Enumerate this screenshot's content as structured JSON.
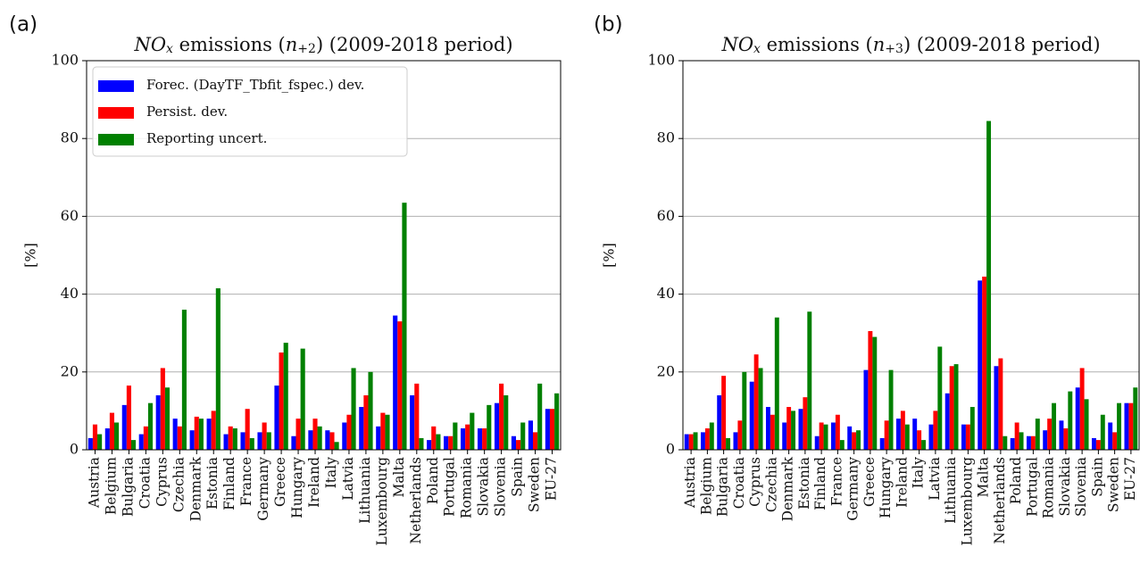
{
  "chart_data": [
    {
      "type": "bar",
      "panel_label": "(a)",
      "title_parts": [
        "NO",
        "x",
        " emissions (",
        "n",
        "+2",
        ") (2009-2018 period)"
      ],
      "ylabel": "[%]",
      "ylim": [
        0,
        100
      ],
      "yticks": [
        0,
        20,
        40,
        60,
        80,
        100
      ],
      "grid": true,
      "legend": "upper left",
      "categories": [
        "Austria",
        "Belgium",
        "Bulgaria",
        "Croatia",
        "Cyprus",
        "Czechia",
        "Denmark",
        "Estonia",
        "Finland",
        "France",
        "Germany",
        "Greece",
        "Hungary",
        "Ireland",
        "Italy",
        "Latvia",
        "Lithuania",
        "Luxembourg",
        "Malta",
        "Netherlands",
        "Poland",
        "Portugal",
        "Romania",
        "Slovakia",
        "Slovenia",
        "Spain",
        "Sweden",
        "EU-27"
      ],
      "series": [
        {
          "name": "Forec. (DayTF_Tbfit_fspec.) dev.",
          "color": "#0000ff",
          "values": [
            3,
            5.5,
            11.5,
            4,
            14,
            8,
            5,
            8,
            4,
            4.5,
            4.5,
            16.5,
            3.5,
            5,
            5,
            7,
            11,
            6,
            34.5,
            14,
            2.5,
            3.5,
            5.5,
            5.5,
            12,
            3.5,
            7.5,
            10.5
          ]
        },
        {
          "name": "Persist. dev.",
          "color": "#ff0000",
          "values": [
            6.5,
            9.5,
            16.5,
            6,
            21,
            6,
            8.5,
            10,
            6,
            10.5,
            7,
            25,
            8,
            8,
            4.5,
            9,
            14,
            9.5,
            33,
            17,
            6,
            3.5,
            6.5,
            5.5,
            17,
            2.5,
            4.5,
            10.5
          ]
        },
        {
          "name": "Reporting uncert.",
          "color": "#008000",
          "values": [
            4,
            7,
            2.5,
            12,
            16,
            36,
            8,
            41.5,
            5.5,
            3,
            4.5,
            27.5,
            26,
            6,
            2,
            21,
            20,
            9,
            63.5,
            3,
            4,
            7,
            9.5,
            11.5,
            14,
            7,
            17,
            14.5
          ]
        }
      ]
    },
    {
      "type": "bar",
      "panel_label": "(b)",
      "title_parts": [
        "NO",
        "x",
        " emissions (",
        "n",
        "+3",
        ") (2009-2018 period)"
      ],
      "ylabel": "[%]",
      "ylim": [
        0,
        100
      ],
      "yticks": [
        0,
        20,
        40,
        60,
        80,
        100
      ],
      "grid": true,
      "categories": [
        "Austria",
        "Belgium",
        "Bulgaria",
        "Croatia",
        "Cyprus",
        "Czechia",
        "Denmark",
        "Estonia",
        "Finland",
        "France",
        "Germany",
        "Greece",
        "Hungary",
        "Ireland",
        "Italy",
        "Latvia",
        "Lithuania",
        "Luxembourg",
        "Malta",
        "Netherlands",
        "Poland",
        "Portugal",
        "Romania",
        "Slovakia",
        "Slovenia",
        "Spain",
        "Sweden",
        "EU-27"
      ],
      "series": [
        {
          "name": "Forec. (DayTF_Tbfit_fspec.) dev.",
          "color": "#0000ff",
          "values": [
            4,
            4.5,
            14,
            4.5,
            17.5,
            11,
            7,
            10.5,
            3.5,
            7,
            6,
            20.5,
            3,
            8,
            8,
            6.5,
            14.5,
            6.5,
            43.5,
            21.5,
            3,
            3.5,
            5,
            7.5,
            16,
            3,
            7,
            12
          ]
        },
        {
          "name": "Persist. dev.",
          "color": "#ff0000",
          "values": [
            4,
            5.5,
            19,
            7.5,
            24.5,
            9,
            11,
            13.5,
            7,
            9,
            4.5,
            30.5,
            7.5,
            10,
            5,
            10,
            21.5,
            6.5,
            44.5,
            23.5,
            7,
            3.5,
            8,
            5.5,
            21,
            2.5,
            4.5,
            12
          ]
        },
        {
          "name": "Reporting uncert.",
          "color": "#008000",
          "values": [
            4.5,
            7,
            3,
            20,
            21,
            34,
            10,
            35.5,
            6.5,
            2.5,
            5,
            29,
            20.5,
            6.5,
            2.5,
            26.5,
            22,
            11,
            84.5,
            3.5,
            4.5,
            8,
            12,
            15,
            13,
            9,
            12,
            16
          ]
        }
      ]
    }
  ]
}
